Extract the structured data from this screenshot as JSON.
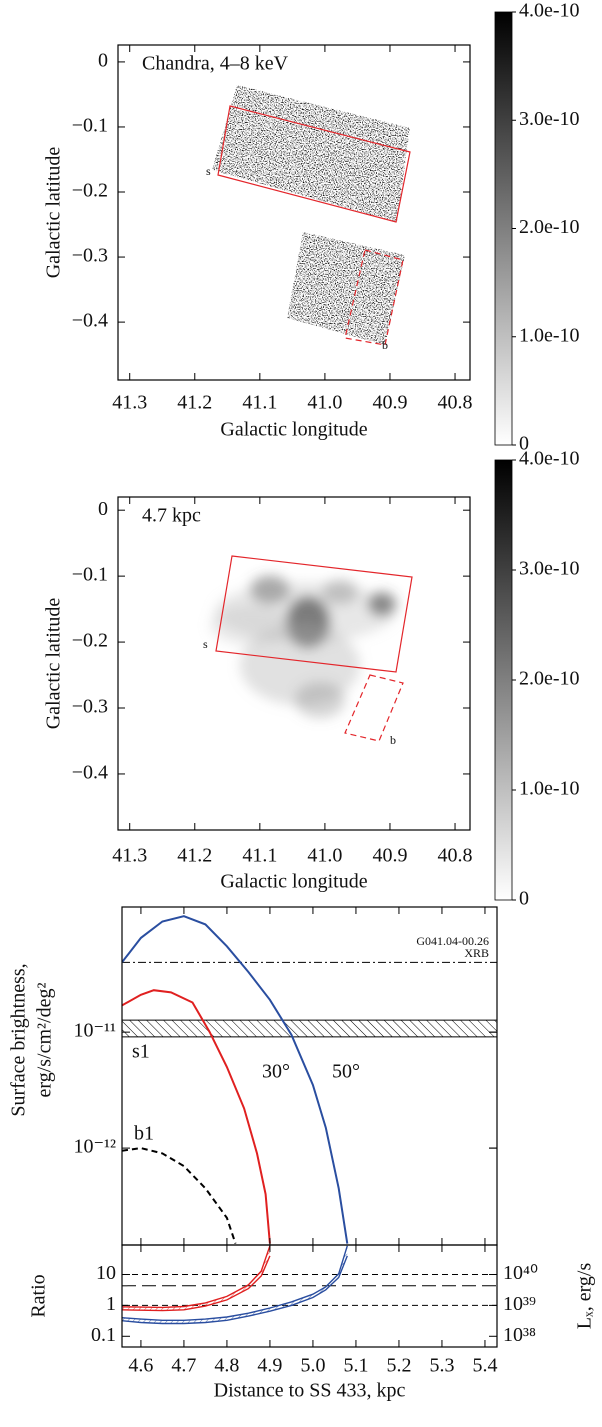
{
  "chart_data": [
    {
      "type": "image",
      "annotation": "Chandra, 4–8 keV",
      "xlabel": "Galactic longitude",
      "ylabel": "Galactic latitude",
      "xlim": [
        41.318,
        40.777
      ],
      "ylim": [
        -0.489,
        0.026
      ],
      "xticks": [
        41.3,
        41.2,
        41.1,
        {
          "value": 41,
          "label": "41.0"
        },
        40.9,
        40.8
      ],
      "yticks": [
        0,
        {
          "value": -0.1,
          "label": "−0.1"
        },
        {
          "value": -0.2,
          "label": "−0.2"
        },
        {
          "value": -0.3,
          "label": "−0.3"
        },
        {
          "value": -0.4,
          "label": "−0.4"
        }
      ],
      "colormap": "gray_r",
      "colorbar": {
        "lim": [
          0,
          4e-10
        ],
        "ticks": [
          0,
          {
            "value": 1e-10,
            "label": "1.0e-10"
          },
          {
            "value": 2e-10,
            "label": "2.0e-10"
          },
          {
            "value": 3e-10,
            "label": "3.0e-10"
          },
          {
            "value": 4e-10,
            "label": "4.0e-10"
          }
        ]
      },
      "regions": [
        {
          "name": "s",
          "color": "#e3262b",
          "style": "solid"
        },
        {
          "name": "b",
          "color": "#e3262b",
          "style": "dashed"
        }
      ]
    },
    {
      "type": "image",
      "annotation": "4.7 kpc",
      "xlabel": "Galactic longitude",
      "ylabel": "Galactic latitude",
      "xlim": [
        41.318,
        40.777
      ],
      "ylim": [
        -0.485,
        0.02
      ],
      "xticks": [
        41.3,
        41.2,
        41.1,
        {
          "value": 41,
          "label": "41.0"
        },
        40.9,
        40.8
      ],
      "yticks": [
        0,
        {
          "value": -0.1,
          "label": "−0.1"
        },
        {
          "value": -0.2,
          "label": "−0.2"
        },
        {
          "value": -0.3,
          "label": "−0.3"
        },
        {
          "value": -0.4,
          "label": "−0.4"
        }
      ],
      "colormap": "gray_r",
      "colorbar": {
        "lim": [
          0,
          4e-10
        ],
        "ticks": [
          0,
          {
            "value": 1e-10,
            "label": "1.0e-10"
          },
          {
            "value": 2e-10,
            "label": "2.0e-10"
          },
          {
            "value": 3e-10,
            "label": "3.0e-10"
          },
          {
            "value": 4e-10,
            "label": "4.0e-10"
          }
        ]
      },
      "regions": [
        {
          "name": "s",
          "color": "#e3262b",
          "style": "solid"
        },
        {
          "name": "b",
          "color": "#e3262b",
          "style": "dashed"
        }
      ]
    },
    {
      "type": "line",
      "ylabel": [
        "Surface brightness,",
        "erg/s/cm²/deg²"
      ],
      "log_y": true,
      "xlim": [
        4.556,
        5.428
      ],
      "ylim": [
        1.46e-13,
        1.2e-10
      ],
      "xticks": [
        4.6,
        4.7,
        4.8,
        4.9,
        5,
        5.1,
        5.2,
        5.3,
        5.4
      ],
      "yticks": [
        {
          "value": 1e-11,
          "label": "10⁻¹¹"
        },
        {
          "value": 1e-12,
          "label": "10⁻¹²"
        }
      ],
      "series": [
        {
          "name": "30°",
          "color": "#e02020",
          "style": "solid",
          "x": [
            4.556,
            4.6,
            4.63,
            4.67,
            4.72,
            4.76,
            4.8,
            4.84,
            4.87,
            4.89,
            4.9
          ],
          "values": [
            1.7e-11,
            2.1e-11,
            2.3e-11,
            2.2e-11,
            1.8e-11,
            1e-11,
            5e-12,
            2.2e-12,
            9e-13,
            4e-13,
            1.5e-13
          ]
        },
        {
          "name": "50°",
          "color": "#2a4ea0",
          "style": "solid",
          "x": [
            4.556,
            4.6,
            4.65,
            4.7,
            4.75,
            4.8,
            4.85,
            4.9,
            4.95,
            5.0,
            5.03,
            5.06,
            5.08
          ],
          "values": [
            4e-11,
            6.5e-11,
            9e-11,
            1e-10,
            8.5e-11,
            5.5e-11,
            3.3e-11,
            1.9e-11,
            9.5e-12,
            3.5e-12,
            1.5e-12,
            4.5e-13,
            1.5e-13
          ]
        },
        {
          "name": "b1",
          "color": "#000000",
          "style": "dashed",
          "x": [
            4.556,
            4.6,
            4.65,
            4.7,
            4.75,
            4.8,
            4.82
          ],
          "values": [
            9.5e-13,
            1e-12,
            9e-13,
            7e-13,
            4.5e-13,
            2.5e-13,
            1.5e-13
          ]
        }
      ],
      "hlines": [
        {
          "label": [
            "G041.04-00.26",
            "XRB"
          ],
          "value": 4e-11,
          "style": "dashdot"
        }
      ],
      "bands": [
        {
          "name": "s1",
          "low": 9.1e-12,
          "high": 1.27e-11,
          "hatch": true
        }
      ]
    },
    {
      "type": "band",
      "ylabel": "Ratio",
      "xlabel": "Distance to SS 433, kpc",
      "log_y": true,
      "xlim": [
        4.556,
        5.428
      ],
      "ylim": [
        0.045,
        90
      ],
      "xticks": [
        4.6,
        4.7,
        4.8,
        4.9,
        {
          "value": 5,
          "label": "5.0"
        },
        5.1,
        5.2,
        5.3,
        5.4
      ],
      "yticks": [
        0.1,
        1,
        10
      ],
      "y2label": "Lₓ, erg/s",
      "y2lim": [
        4.5e+37,
        9e+40
      ],
      "y2ticks": [
        {
          "value": 1e+38,
          "label": "10³⁸"
        },
        {
          "value": 1e+39,
          "label": "10³⁹"
        },
        {
          "value": 1e+40,
          "label": "10⁴⁰"
        }
      ],
      "series": [
        {
          "color": "#e02020",
          "x": [
            4.556,
            4.6,
            4.65,
            4.7,
            4.75,
            4.8,
            4.85,
            4.88,
            4.9
          ],
          "low": [
            0.72,
            0.7,
            0.68,
            0.72,
            0.95,
            1.5,
            3.5,
            9,
            40
          ],
          "high": [
            0.9,
            0.88,
            0.86,
            0.92,
            1.2,
            1.95,
            4.6,
            13,
            85
          ]
        },
        {
          "color": "#2a4ea0",
          "x": [
            4.556,
            4.6,
            4.65,
            4.7,
            4.75,
            4.8,
            4.85,
            4.9,
            4.95,
            5.0,
            5.03,
            5.06,
            5.08
          ],
          "low": [
            0.32,
            0.28,
            0.26,
            0.26,
            0.28,
            0.33,
            0.45,
            0.65,
            1.0,
            1.8,
            3.2,
            8,
            40
          ],
          "high": [
            0.4,
            0.36,
            0.33,
            0.33,
            0.36,
            0.42,
            0.56,
            0.82,
            1.3,
            2.3,
            4,
            10.5,
            85
          ]
        }
      ],
      "hlines": [
        {
          "value": 10,
          "style": "dashed"
        },
        {
          "value": 4.3,
          "style": "longdash"
        },
        {
          "value": 1,
          "style": "dashed"
        }
      ]
    }
  ]
}
